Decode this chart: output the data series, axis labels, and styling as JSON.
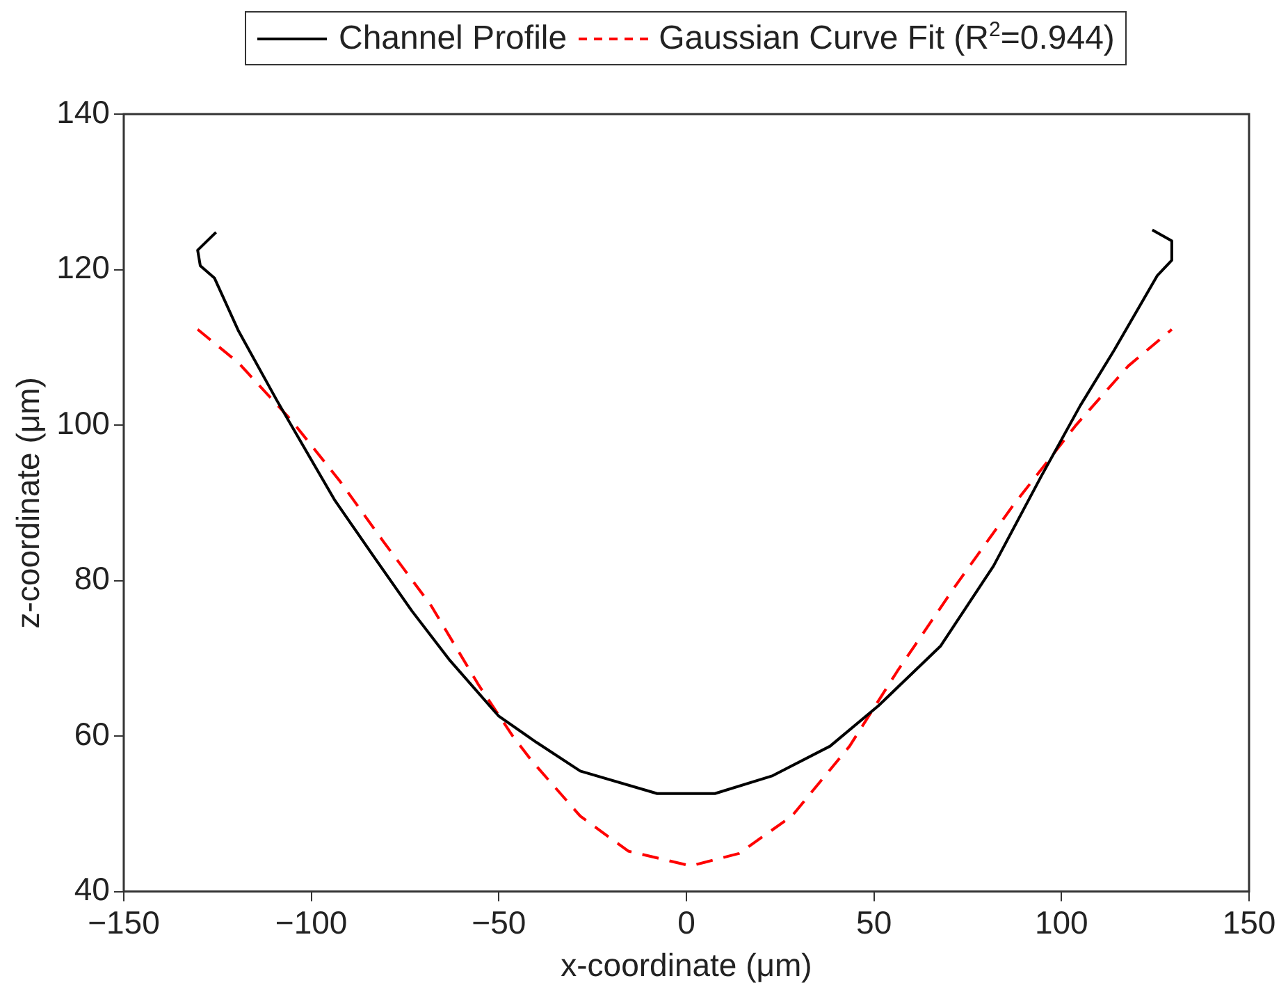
{
  "chart_data": {
    "type": "line",
    "xlabel": "x-coordinate (μm)",
    "ylabel": "z-coordinate (μm)",
    "xlim": [
      -150,
      150
    ],
    "xticks": [
      -150,
      -100,
      -50,
      0,
      50,
      100,
      150
    ],
    "ylim": [
      40,
      140
    ],
    "yticks": [
      40,
      60,
      80,
      100,
      120,
      140
    ],
    "grid": false,
    "legend": "top",
    "marker": "none",
    "series": [
      {
        "name": "Channel Profile",
        "color": "#000000",
        "line_style": "solid",
        "x": [
          -125.4,
          -130.3,
          -129.6,
          -125.8,
          -119.4,
          -109.1,
          -101.4,
          -93.7,
          -83.5,
          -73.2,
          -63,
          -50.1,
          -40,
          -28.3,
          -7.8,
          7.6,
          23,
          38.3,
          51.2,
          67.8,
          81.9,
          94.7,
          105,
          114,
          125.5,
          129.4,
          129.4,
          124.2
        ],
        "values": [
          124.8,
          122.5,
          120.5,
          118.9,
          112.1,
          103.1,
          96.7,
          90.3,
          83.2,
          76.1,
          69.7,
          62.6,
          59.2,
          55.5,
          52.6,
          52.6,
          54.9,
          58.7,
          63.9,
          71.6,
          81.9,
          93.5,
          102.5,
          109.6,
          119.2,
          121.2,
          123.7,
          125.1
        ]
      },
      {
        "name": "Gaussian Curve Fit (R$^{2}$=0.944)",
        "color": "#ff0000",
        "line_style": "dashed",
        "x": [
          -130.3,
          -119.4,
          -105.3,
          -92.4,
          -80.9,
          -68.1,
          -55.3,
          -46.3,
          -41.2,
          -28.3,
          -15.5,
          1.2,
          14,
          28.1,
          43.5,
          56.3,
          71.7,
          87,
          103.7,
          117.8,
          129.4
        ],
        "values": [
          112.3,
          108,
          100.6,
          92.8,
          85.1,
          76.8,
          66.5,
          60,
          56.8,
          49.7,
          45.2,
          43.3,
          44.9,
          49.7,
          58.7,
          68.4,
          79.3,
          89.6,
          99.9,
          107.6,
          112.3
        ]
      }
    ]
  }
}
